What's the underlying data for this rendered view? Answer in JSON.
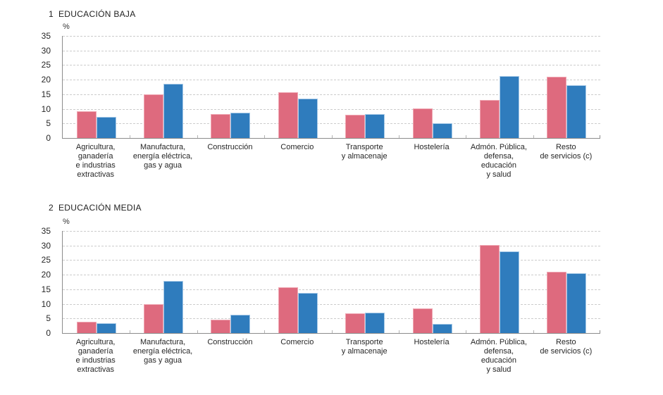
{
  "page": {
    "background": "#ffffff",
    "axis_color": "#8c8c8c",
    "gridline_color": "#cccccc",
    "text_color": "#262626"
  },
  "chart_data": [
    {
      "type": "bar",
      "title_index": "1",
      "title": "EDUCACIÓN BAJA",
      "ylabel": "%",
      "ylim": [
        0,
        35
      ],
      "y_ticks": [
        0,
        5,
        10,
        15,
        20,
        25,
        30,
        35
      ],
      "grid": true,
      "legend": "none",
      "categories": [
        "Agricultura, ganadería e industrias extractivas",
        "Manufactura, energía eléctrica, gas y agua",
        "Construcción",
        "Comercio",
        "Transporte y almacenaje",
        "Hostelería",
        "Admón. Pública, defensa, educación y salud",
        "Resto de servicios (c)"
      ],
      "category_lines": [
        [
          "Agricultura,",
          "ganadería",
          "e industrias",
          "extractivas"
        ],
        [
          "Manufactura,",
          "energía eléctrica,",
          "gas y agua"
        ],
        [
          "Construcción"
        ],
        [
          "Comercio"
        ],
        [
          "Transporte",
          "y almacenaje"
        ],
        [
          "Hostelería"
        ],
        [
          "Admón. Pública,",
          "defensa,",
          "educación",
          "y salud"
        ],
        [
          "Resto",
          "de servicios (c)"
        ]
      ],
      "series": [
        {
          "name": "serie-rosa",
          "color": "#DE6A7E",
          "border_color": "#F0A8B4",
          "values": [
            9.2,
            15.0,
            8.3,
            15.7,
            7.9,
            10.1,
            13.0,
            21.0
          ]
        },
        {
          "name": "serie-azul",
          "color": "#2F7CBD",
          "border_color": "#A9CBE8",
          "values": [
            7.3,
            18.6,
            8.7,
            13.6,
            8.1,
            5.0,
            21.3,
            18.0
          ]
        }
      ]
    },
    {
      "type": "bar",
      "title_index": "2",
      "title": "EDUCACIÓN MEDIA",
      "ylabel": "%",
      "ylim": [
        0,
        35
      ],
      "y_ticks": [
        0,
        5,
        10,
        15,
        20,
        25,
        30,
        35
      ],
      "grid": true,
      "legend": "none",
      "categories": [
        "Agricultura, ganadería e industrias extractivas",
        "Manufactura, energía eléctrica, gas y agua",
        "Construcción",
        "Comercio",
        "Transporte y almacenaje",
        "Hostelería",
        "Admón. Pública, defensa, educación y salud",
        "Resto de servicios (c)"
      ],
      "category_lines": [
        [
          "Agricultura,",
          "ganadería",
          "e industrias",
          "extractivas"
        ],
        [
          "Manufactura,",
          "energía eléctrica,",
          "gas y agua"
        ],
        [
          "Construcción"
        ],
        [
          "Comercio"
        ],
        [
          "Transporte",
          "y almacenaje"
        ],
        [
          "Hostelería"
        ],
        [
          "Admón. Pública,",
          "defensa,",
          "educación",
          "y salud"
        ],
        [
          "Resto",
          "de servicios (c)"
        ]
      ],
      "series": [
        {
          "name": "serie-rosa",
          "color": "#DE6A7E",
          "border_color": "#F0A8B4",
          "values": [
            3.8,
            10.0,
            4.5,
            15.7,
            6.7,
            8.5,
            30.2,
            20.9
          ]
        },
        {
          "name": "serie-azul",
          "color": "#2F7CBD",
          "border_color": "#A9CBE8",
          "values": [
            3.5,
            17.8,
            6.3,
            13.8,
            7.0,
            3.1,
            27.9,
            20.5
          ]
        }
      ]
    }
  ]
}
